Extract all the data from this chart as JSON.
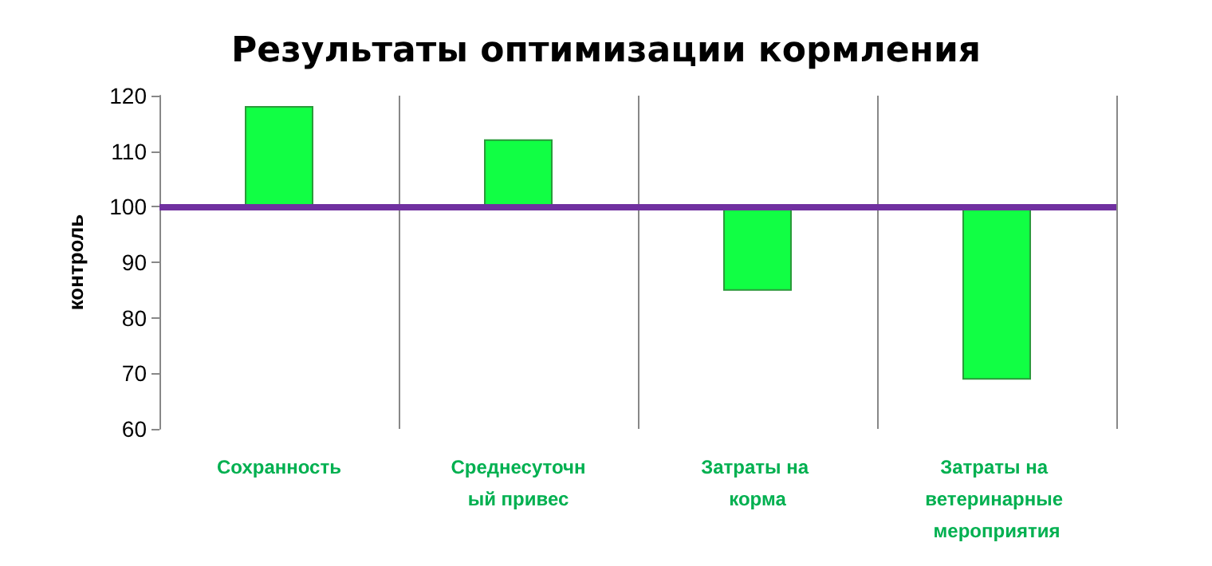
{
  "chart_data": {
    "type": "bar",
    "title": "Результаты оптимизации кормления",
    "ylabel": "контроль",
    "categories": [
      "Сохранность",
      "Среднесуточный привес",
      "Затраты на корма",
      "Затраты на ветеринарные мероприятия"
    ],
    "series": [
      {
        "color": "#11ff44",
        "values": [
          18,
          12,
          -15,
          -31
        ],
        "base": [
          100,
          100,
          100,
          100
        ]
      }
    ],
    "ylim": [
      60,
      120
    ],
    "yticks": [
      60,
      70,
      80,
      90,
      100,
      110,
      120
    ],
    "grid": "x",
    "ref_lines": [
      {
        "axis": "y",
        "value": 100,
        "color": "#7030a0"
      }
    ]
  }
}
